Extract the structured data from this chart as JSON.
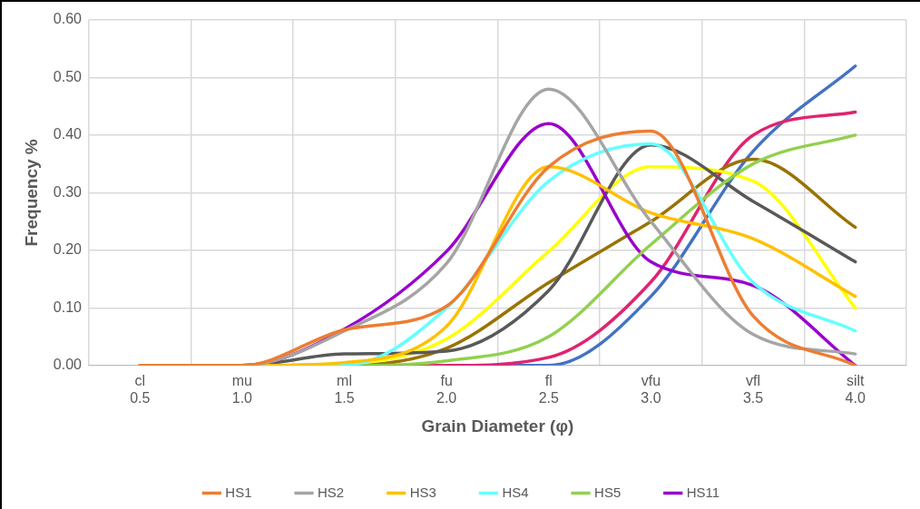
{
  "chart_data": {
    "type": "line",
    "xlabel": "Grain Diameter (φ)",
    "ylabel": "Frequency %",
    "categories": [
      "cl\n0.5",
      "mu\n1.0",
      "ml\n1.5",
      "fu\n2.0",
      "fl\n2.5",
      "vfu\n3.0",
      "vfl\n3.5",
      "silt\n4.0"
    ],
    "ylim": [
      0,
      0.6
    ],
    "yticks": [
      {
        "value": 0,
        "label": "0.00"
      },
      {
        "value": 0.1,
        "label": "0.10"
      },
      {
        "value": 0.2,
        "label": "0.20"
      },
      {
        "value": 0.3,
        "label": "0.30"
      },
      {
        "value": 0.4,
        "label": "0.40"
      },
      {
        "value": 0.5,
        "label": "0.50"
      },
      {
        "value": 0.6,
        "label": "0.60"
      }
    ],
    "grid": true,
    "legend": "bottom",
    "marker": "none",
    "line_style": "solid",
    "series": [
      {
        "name": "HS1",
        "color": "#ed7d31",
        "values": [
          0,
          0,
          0.062,
          0.103,
          0.345,
          0.407,
          0.086,
          0
        ]
      },
      {
        "name": "HS2",
        "color": "#a5a5a5",
        "values": [
          0,
          0,
          0.06,
          0.177,
          0.48,
          0.25,
          0.054,
          0.02
        ]
      },
      {
        "name": "HS3",
        "color": "#ffc000",
        "values": [
          0,
          0,
          0.005,
          0.068,
          0.345,
          0.265,
          0.22,
          0.12
        ]
      },
      {
        "name": "HS4",
        "color": "#66ffff",
        "values": [
          0,
          0,
          0,
          0.1,
          0.32,
          0.385,
          0.144,
          0.06
        ]
      },
      {
        "name": "HS5",
        "color": "#92d050",
        "values": [
          0,
          0,
          0,
          0.008,
          0.05,
          0.21,
          0.35,
          0.4
        ]
      },
      {
        "name": "HS11",
        "color": "#9900cc",
        "values": [
          0,
          0,
          0.063,
          0.198,
          0.42,
          0.18,
          0.139,
          0
        ]
      },
      {
        "color": "#595959",
        "values": [
          0,
          0,
          0.02,
          0.025,
          0.13,
          0.383,
          0.285,
          0.18
        ]
      },
      {
        "color": "#ffff00",
        "values": [
          0,
          0,
          0.003,
          0.046,
          0.198,
          0.345,
          0.32,
          0.1
        ]
      },
      {
        "color": "#997300",
        "values": [
          0,
          0,
          0,
          0.03,
          0.144,
          0.25,
          0.358,
          0.24
        ]
      },
      {
        "color": "#e0246f",
        "values": [
          null,
          null,
          0,
          0,
          0.014,
          0.145,
          0.4,
          0.44
        ]
      },
      {
        "color": "#4472c4",
        "values": [
          null,
          null,
          null,
          0,
          0,
          0.12,
          0.372,
          0.52
        ]
      }
    ]
  }
}
